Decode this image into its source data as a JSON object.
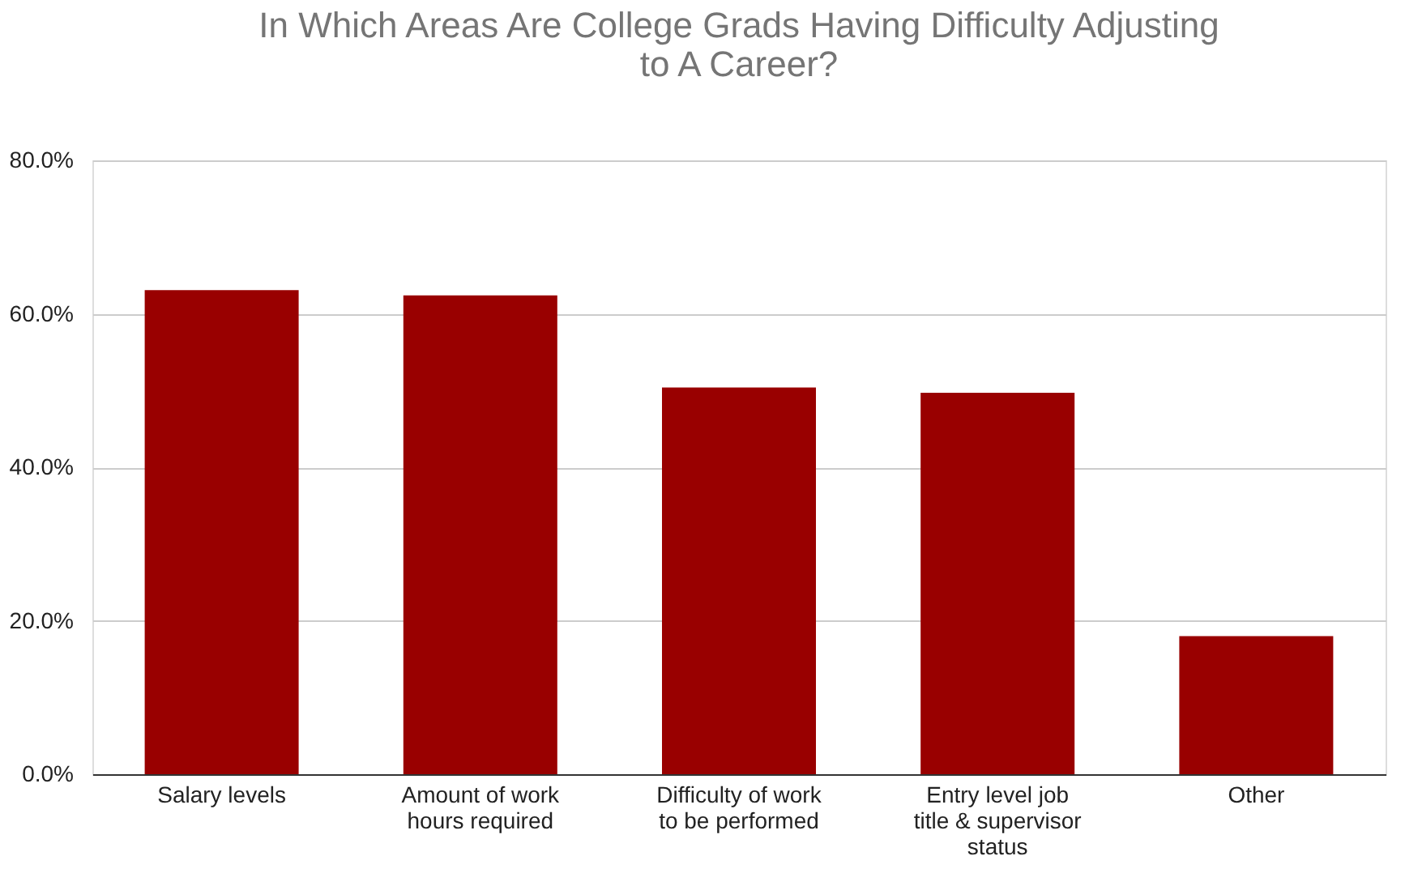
{
  "chart_data": {
    "type": "bar",
    "title": "In Which Areas Are College Grads Having Difficulty Adjusting to A Career?",
    "categories": [
      "Salary levels",
      "Amount of work hours required",
      "Difficulty of work to be performed",
      "Entry level job title & supervisor status",
      "Other"
    ],
    "values": [
      63.1,
      62.4,
      50.4,
      49.7,
      18.0
    ],
    "color": "#990000",
    "ylim": [
      0,
      80
    ],
    "yticks": [
      {
        "value": 0,
        "label": "0.0%"
      },
      {
        "value": 20,
        "label": "20.0%"
      },
      {
        "value": 40,
        "label": "40.0%"
      },
      {
        "value": 60,
        "label": "60.0%"
      },
      {
        "value": 80,
        "label": "80.0%"
      }
    ],
    "grid": "y"
  }
}
